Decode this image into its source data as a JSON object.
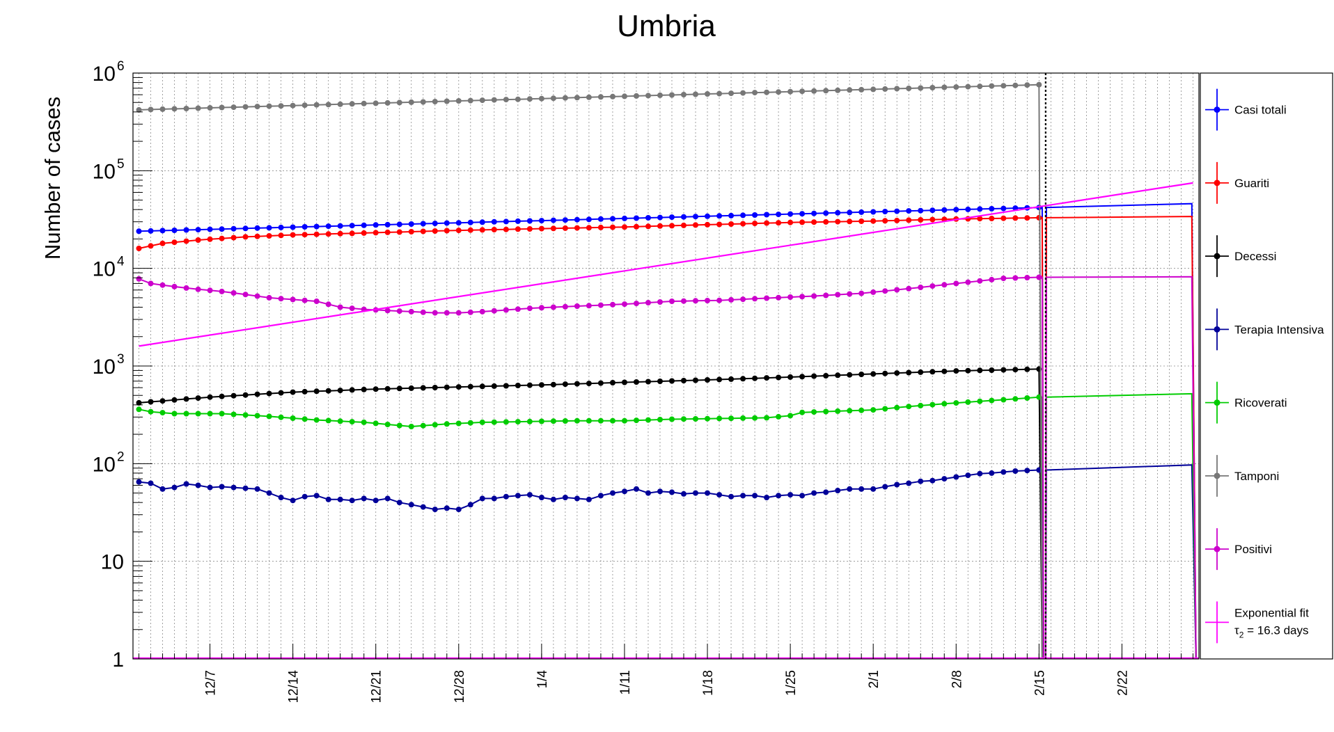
{
  "chart_data": {
    "type": "line",
    "title": "Umbria",
    "ylabel": "Number of cases",
    "xlabel": "",
    "y_scale": "log",
    "ylim": [
      1,
      1000000
    ],
    "y_ticks": [
      {
        "value": 1,
        "base": "1",
        "exp": ""
      },
      {
        "value": 10,
        "base": "10",
        "exp": ""
      },
      {
        "value": 100,
        "base": "10",
        "exp": "2"
      },
      {
        "value": 1000,
        "base": "10",
        "exp": "3"
      },
      {
        "value": 10000,
        "base": "10",
        "exp": "4"
      },
      {
        "value": 100000,
        "base": "10",
        "exp": "5"
      },
      {
        "value": 1000000,
        "base": "10",
        "exp": "6"
      }
    ],
    "x_start": "12/1",
    "x_range_days": [
      0.5,
      90.5
    ],
    "x_ticks": [
      {
        "label": "12/7",
        "day": 7
      },
      {
        "label": "12/14",
        "day": 14
      },
      {
        "label": "12/21",
        "day": 21
      },
      {
        "label": "12/28",
        "day": 28
      },
      {
        "label": "1/4",
        "day": 35
      },
      {
        "label": "1/11",
        "day": 42
      },
      {
        "label": "1/18",
        "day": 49
      },
      {
        "label": "1/25",
        "day": 56
      },
      {
        "label": "2/1",
        "day": 63
      },
      {
        "label": "2/8",
        "day": 70
      },
      {
        "label": "2/15",
        "day": 77
      },
      {
        "label": "2/22",
        "day": 84
      }
    ],
    "last_point_day": 77,
    "vline_day": 77.5,
    "grid": true,
    "legend_position": "right",
    "series": [
      {
        "name": "Casi totali",
        "color": "#0000ff",
        "start": 24000,
        "end": 42000,
        "pts": [],
        "flat_end": 46000
      },
      {
        "name": "Guariti",
        "color": "#ff0000",
        "start": 16000,
        "end": 33000,
        "pts": [
          [
            3,
            18000
          ],
          [
            6,
            19500
          ],
          [
            10,
            21000
          ],
          [
            14,
            22000
          ],
          [
            20,
            23000
          ],
          [
            28,
            24500
          ],
          [
            35,
            25500
          ],
          [
            42,
            26500
          ],
          [
            49,
            28000
          ],
          [
            56,
            29500
          ],
          [
            63,
            30500
          ],
          [
            70,
            32000
          ]
        ],
        "flat_end": 34000
      },
      {
        "name": "Decessi",
        "color": "#000000",
        "start": 420,
        "end": 930,
        "pts": [
          [
            7,
            480
          ],
          [
            14,
            540
          ],
          [
            21,
            580
          ],
          [
            28,
            610
          ],
          [
            35,
            640
          ],
          [
            42,
            680
          ],
          [
            49,
            720
          ],
          [
            56,
            770
          ],
          [
            63,
            830
          ],
          [
            70,
            890
          ]
        ],
        "flat_end": null
      },
      {
        "name": "Terapia Intensiva",
        "color": "#000099",
        "start": 65,
        "end": 86,
        "pts": [
          [
            2,
            63
          ],
          [
            3,
            55
          ],
          [
            4,
            57
          ],
          [
            5,
            62
          ],
          [
            6,
            60
          ],
          [
            7,
            57
          ],
          [
            8,
            58
          ],
          [
            9,
            57
          ],
          [
            10,
            56
          ],
          [
            11,
            55
          ],
          [
            12,
            50
          ],
          [
            13,
            45
          ],
          [
            14,
            42
          ],
          [
            15,
            46
          ],
          [
            16,
            47
          ],
          [
            17,
            43
          ],
          [
            18,
            43
          ],
          [
            19,
            42
          ],
          [
            20,
            44
          ],
          [
            21,
            42
          ],
          [
            22,
            44
          ],
          [
            23,
            40
          ],
          [
            24,
            38
          ],
          [
            25,
            36
          ],
          [
            26,
            34
          ],
          [
            27,
            35
          ],
          [
            28,
            34
          ],
          [
            29,
            38
          ],
          [
            30,
            44
          ],
          [
            31,
            44
          ],
          [
            32,
            46
          ],
          [
            33,
            47
          ],
          [
            34,
            48
          ],
          [
            35,
            45
          ],
          [
            36,
            43
          ],
          [
            37,
            45
          ],
          [
            38,
            44
          ],
          [
            39,
            43
          ],
          [
            40,
            47
          ],
          [
            41,
            50
          ],
          [
            42,
            52
          ],
          [
            43,
            55
          ],
          [
            44,
            50
          ],
          [
            45,
            52
          ],
          [
            46,
            51
          ],
          [
            47,
            49
          ],
          [
            48,
            50
          ],
          [
            49,
            50
          ],
          [
            50,
            48
          ],
          [
            51,
            46
          ],
          [
            52,
            47
          ],
          [
            53,
            47
          ],
          [
            54,
            45
          ],
          [
            55,
            47
          ],
          [
            56,
            48
          ],
          [
            57,
            47
          ],
          [
            58,
            50
          ],
          [
            59,
            51
          ],
          [
            60,
            53
          ],
          [
            61,
            55
          ],
          [
            62,
            55
          ],
          [
            63,
            55
          ],
          [
            64,
            58
          ],
          [
            65,
            61
          ],
          [
            66,
            63
          ],
          [
            67,
            66
          ],
          [
            68,
            67
          ],
          [
            69,
            70
          ],
          [
            70,
            73
          ],
          [
            71,
            76
          ],
          [
            72,
            79
          ],
          [
            73,
            80
          ],
          [
            74,
            82
          ],
          [
            75,
            84
          ],
          [
            76,
            85
          ],
          [
            77,
            86
          ]
        ],
        "flat_end": 97
      },
      {
        "name": "Ricoverati",
        "color": "#00cc00",
        "start": 360,
        "end": 480,
        "pts": [
          [
            2,
            340
          ],
          [
            4,
            325
          ],
          [
            8,
            325
          ],
          [
            12,
            305
          ],
          [
            16,
            280
          ],
          [
            20,
            265
          ],
          [
            24,
            240
          ],
          [
            27,
            255
          ],
          [
            30,
            265
          ],
          [
            34,
            270
          ],
          [
            38,
            275
          ],
          [
            42,
            275
          ],
          [
            46,
            285
          ],
          [
            50,
            290
          ],
          [
            54,
            295
          ],
          [
            56,
            310
          ],
          [
            57,
            335
          ],
          [
            60,
            345
          ],
          [
            63,
            355
          ],
          [
            66,
            385
          ],
          [
            69,
            410
          ],
          [
            72,
            435
          ],
          [
            75,
            460
          ]
        ],
        "flat_end": 520
      },
      {
        "name": "Tamponi",
        "color": "#777777",
        "start": 420000,
        "end": 760000,
        "pts": [],
        "flat_end": null
      },
      {
        "name": "Positivi",
        "color": "#cc00cc",
        "start": 7800,
        "end": 8100,
        "pts": [
          [
            2,
            7000
          ],
          [
            4,
            6500
          ],
          [
            6,
            6100
          ],
          [
            8,
            5800
          ],
          [
            10,
            5400
          ],
          [
            12,
            5000
          ],
          [
            14,
            4800
          ],
          [
            16,
            4600
          ],
          [
            18,
            4000
          ],
          [
            20,
            3800
          ],
          [
            22,
            3700
          ],
          [
            24,
            3600
          ],
          [
            26,
            3500
          ],
          [
            28,
            3500
          ],
          [
            30,
            3600
          ],
          [
            34,
            3900
          ],
          [
            38,
            4100
          ],
          [
            42,
            4300
          ],
          [
            46,
            4600
          ],
          [
            50,
            4700
          ],
          [
            54,
            4950
          ],
          [
            58,
            5200
          ],
          [
            62,
            5550
          ],
          [
            66,
            6200
          ],
          [
            70,
            7000
          ],
          [
            74,
            7900
          ]
        ],
        "flat_end": 8200
      },
      {
        "name": "Exponential fit",
        "label_line2_prefix": "τ",
        "label_line2_sub": "2",
        "label_line2_suffix": " = 16.3 days",
        "color": "#ff00ff",
        "fit_start": 1600,
        "fit_end": 75000,
        "pts": [],
        "flat_end": null
      }
    ]
  }
}
